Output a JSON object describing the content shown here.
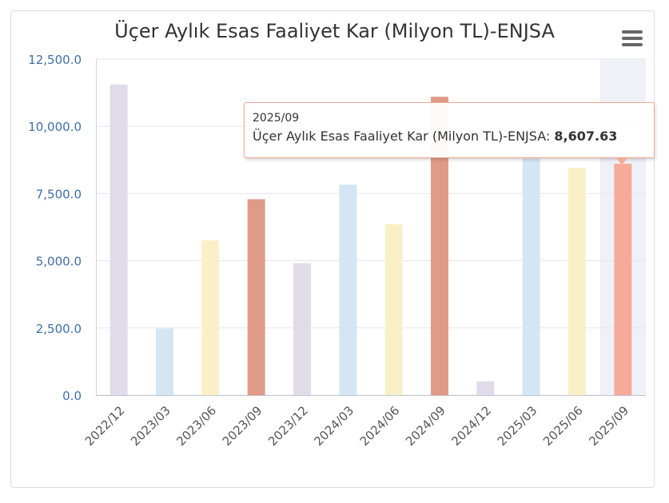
{
  "chart_data": {
    "type": "bar",
    "title": "Üçer Aylık Esas Faaliyet Kar (Milyon TL)-ENJSA",
    "categories": [
      "2022/12",
      "2023/03",
      "2023/06",
      "2023/09",
      "2023/12",
      "2024/03",
      "2024/06",
      "2024/09",
      "2024/12",
      "2025/03",
      "2025/06",
      "2025/09"
    ],
    "series": [
      {
        "name": "Üçer Aylık Esas Faaliyet Kar (Milyon TL)-ENJSA",
        "values": [
          11550,
          2480,
          5760,
          7290,
          4910,
          7830,
          6360,
          11100,
          520,
          8800,
          8460,
          8607.63
        ]
      }
    ],
    "bar_colors": [
      "#e1dbea",
      "#d4e6f3",
      "#faf0c8",
      "#e09b88",
      "#e1dbea",
      "#d4e6f3",
      "#faf0c8",
      "#e09b88",
      "#e1dbea",
      "#d4e6f3",
      "#faf0c8",
      "#f6ab98"
    ],
    "ylim": [
      0,
      12500
    ],
    "yticks": [
      0,
      2500,
      5000,
      7500,
      10000,
      12500
    ],
    "ytick_labels": [
      "0.0",
      "2,500.0",
      "5,000.0",
      "7,500.0",
      "10,000.0",
      "12,500.0"
    ],
    "grid": true,
    "legend": "none",
    "highlighted_category": "2025/09"
  },
  "tooltip": {
    "date": "2025/09",
    "series_label": "Üçer Aylık Esas Faaliyet Kar (Milyon TL)-ENJSA:",
    "value": "8,607.63"
  },
  "menu": {
    "icon": "hamburger-menu-icon"
  }
}
